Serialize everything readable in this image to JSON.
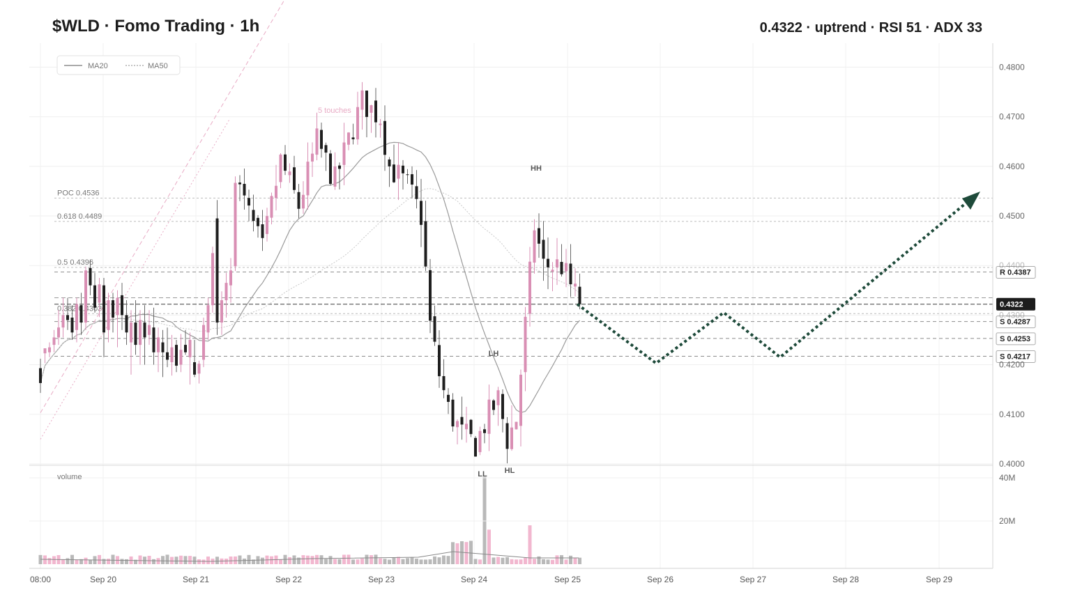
{
  "header": {
    "title": "$WLD · Fomo Trading · 1h",
    "summary": "0.4322 · uptrend · RSI 51 · ADX 33"
  },
  "colors": {
    "bull": "#d98fb4",
    "bear": "#1f1f1f",
    "wick": "#666666",
    "ma20": "#9a9a9a",
    "ma50": "#c8c8c8",
    "forecast": "#1e4a3a",
    "volume_bull": "#f2b7cf",
    "volume_bear": "#b9b9b9",
    "trendline": "#e8aac4"
  },
  "legend": {
    "ma20_label": "MA20",
    "ma50_label": "MA50"
  },
  "chart_data": {
    "type": "candlestick",
    "timeframe": "1h",
    "ylim": [
      0.4,
      0.4825
    ],
    "y_ticks": [
      "0.4000",
      "0.4100",
      "0.4200",
      "0.4300",
      "0.4400",
      "0.4500",
      "0.4600",
      "0.4700",
      "0.4800"
    ],
    "x_labels": [
      "08:00",
      "Sep 20",
      "Sep 21",
      "Sep 22",
      "Sep 23",
      "Sep 24",
      "Sep 25",
      "Sep 26",
      "Sep 27",
      "Sep 28",
      "Sep 29"
    ],
    "last_price": "0.4322",
    "levels": [
      {
        "kind": "POC",
        "label": "POC  0.4536",
        "value": 0.4536
      },
      {
        "kind": "fib",
        "label": "0.618  0.4489",
        "value": 0.4489
      },
      {
        "kind": "fib",
        "label": "0.5  0.4396",
        "value": 0.4396
      },
      {
        "kind": "fib",
        "label": "0.382  0.4303",
        "value": 0.4303
      },
      {
        "kind": "resistance",
        "label": "R 0.4387",
        "value": 0.4387
      },
      {
        "kind": "support",
        "label": "S 0.4287",
        "value": 0.4287
      },
      {
        "kind": "support",
        "label": "S 0.4253",
        "value": 0.4253
      },
      {
        "kind": "support",
        "label": "S 0.4217",
        "value": 0.4217
      },
      {
        "kind": "range",
        "label": "",
        "value": 0.4335
      }
    ],
    "trendline": {
      "label": "5 touches",
      "points": [
        {
          "t": 0,
          "v": 0.4103
        },
        {
          "t": 41,
          "v": 0.4737
        }
      ]
    },
    "pivots": [
      {
        "label": "HH",
        "t": 88,
        "v": 0.4575
      },
      {
        "label": "LH",
        "t": 77,
        "v": 0.4197
      },
      {
        "label": "LL",
        "t": 71,
        "v": 0.4002
      },
      {
        "label": "HL",
        "t": 75,
        "v": 0.4008
      }
    ],
    "forecast_path": [
      {
        "t": 96,
        "v": 0.4322
      },
      {
        "t": 111,
        "v": 0.4203
      },
      {
        "t": 120,
        "v": 0.4305
      },
      {
        "t": 129,
        "v": 0.4215
      },
      {
        "t": 162,
        "v": 0.4538
      }
    ],
    "candles": [
      {
        "t": 0,
        "o": 0.4193,
        "h": 0.4212,
        "l": 0.4143,
        "c": 0.4163
      },
      {
        "t": 1,
        "o": 0.4223,
        "h": 0.4233,
        "l": 0.4203,
        "c": 0.4233
      },
      {
        "t": 2,
        "o": 0.4225,
        "h": 0.4245,
        "l": 0.4215,
        "c": 0.4235
      },
      {
        "t": 3,
        "o": 0.424,
        "h": 0.427,
        "l": 0.4225,
        "c": 0.4255
      },
      {
        "t": 4,
        "o": 0.4255,
        "h": 0.431,
        "l": 0.424,
        "c": 0.4275
      },
      {
        "t": 5,
        "o": 0.4275,
        "h": 0.4335,
        "l": 0.4255,
        "c": 0.43
      },
      {
        "t": 6,
        "o": 0.43,
        "h": 0.4335,
        "l": 0.427,
        "c": 0.429
      },
      {
        "t": 7,
        "o": 0.4295,
        "h": 0.432,
        "l": 0.425,
        "c": 0.4265
      },
      {
        "t": 8,
        "o": 0.427,
        "h": 0.4335,
        "l": 0.4245,
        "c": 0.4322
      },
      {
        "t": 9,
        "o": 0.432,
        "h": 0.4345,
        "l": 0.426,
        "c": 0.4285
      },
      {
        "t": 10,
        "o": 0.4285,
        "h": 0.4398,
        "l": 0.427,
        "c": 0.439
      },
      {
        "t": 11,
        "o": 0.4395,
        "h": 0.4412,
        "l": 0.434,
        "c": 0.436
      },
      {
        "t": 12,
        "o": 0.436,
        "h": 0.4385,
        "l": 0.4305,
        "c": 0.4315
      },
      {
        "t": 13,
        "o": 0.4325,
        "h": 0.4375,
        "l": 0.4296,
        "c": 0.4362
      },
      {
        "t": 14,
        "o": 0.436,
        "h": 0.4375,
        "l": 0.4215,
        "c": 0.4265
      },
      {
        "t": 15,
        "o": 0.427,
        "h": 0.4345,
        "l": 0.4245,
        "c": 0.433
      },
      {
        "t": 16,
        "o": 0.433,
        "h": 0.4345,
        "l": 0.4265,
        "c": 0.4295
      },
      {
        "t": 17,
        "o": 0.43,
        "h": 0.435,
        "l": 0.4235,
        "c": 0.4335
      },
      {
        "t": 18,
        "o": 0.434,
        "h": 0.4365,
        "l": 0.427,
        "c": 0.43
      },
      {
        "t": 19,
        "o": 0.43,
        "h": 0.433,
        "l": 0.424,
        "c": 0.4265
      },
      {
        "t": 20,
        "o": 0.4245,
        "h": 0.431,
        "l": 0.418,
        "c": 0.4285
      },
      {
        "t": 21,
        "o": 0.4285,
        "h": 0.433,
        "l": 0.422,
        "c": 0.424
      },
      {
        "t": 22,
        "o": 0.424,
        "h": 0.431,
        "l": 0.42,
        "c": 0.429
      },
      {
        "t": 23,
        "o": 0.4285,
        "h": 0.432,
        "l": 0.42,
        "c": 0.4255
      },
      {
        "t": 24,
        "o": 0.426,
        "h": 0.431,
        "l": 0.424,
        "c": 0.428
      },
      {
        "t": 25,
        "o": 0.4275,
        "h": 0.4315,
        "l": 0.42,
        "c": 0.4225
      },
      {
        "t": 26,
        "o": 0.4225,
        "h": 0.4275,
        "l": 0.4185,
        "c": 0.4255
      },
      {
        "t": 27,
        "o": 0.4245,
        "h": 0.427,
        "l": 0.4175,
        "c": 0.4225
      },
      {
        "t": 28,
        "o": 0.4225,
        "h": 0.4275,
        "l": 0.4195,
        "c": 0.421
      },
      {
        "t": 29,
        "o": 0.4205,
        "h": 0.426,
        "l": 0.4178,
        "c": 0.4235
      },
      {
        "t": 30,
        "o": 0.424,
        "h": 0.425,
        "l": 0.4185,
        "c": 0.4198
      },
      {
        "t": 31,
        "o": 0.42,
        "h": 0.4262,
        "l": 0.4185,
        "c": 0.423
      },
      {
        "t": 32,
        "o": 0.424,
        "h": 0.427,
        "l": 0.422,
        "c": 0.4225
      },
      {
        "t": 33,
        "o": 0.4215,
        "h": 0.4265,
        "l": 0.416,
        "c": 0.425
      },
      {
        "t": 34,
        "o": 0.4205,
        "h": 0.425,
        "l": 0.4175,
        "c": 0.418
      },
      {
        "t": 35,
        "o": 0.4182,
        "h": 0.4208,
        "l": 0.4162,
        "c": 0.4202
      },
      {
        "t": 36,
        "o": 0.421,
        "h": 0.4295,
        "l": 0.4195,
        "c": 0.428
      },
      {
        "t": 37,
        "o": 0.4265,
        "h": 0.4335,
        "l": 0.425,
        "c": 0.432
      },
      {
        "t": 38,
        "o": 0.432,
        "h": 0.4438,
        "l": 0.4305,
        "c": 0.4425
      },
      {
        "t": 39,
        "o": 0.4495,
        "h": 0.4532,
        "l": 0.426,
        "c": 0.4285
      },
      {
        "t": 40,
        "o": 0.4285,
        "h": 0.4348,
        "l": 0.426,
        "c": 0.433
      },
      {
        "t": 41,
        "o": 0.433,
        "h": 0.4385,
        "l": 0.4295,
        "c": 0.4365
      },
      {
        "t": 42,
        "o": 0.436,
        "h": 0.4415,
        "l": 0.4325,
        "c": 0.439
      }
    ]
  }
}
